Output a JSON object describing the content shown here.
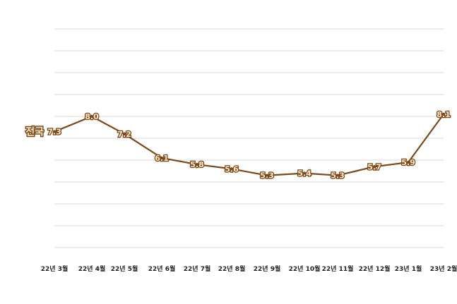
{
  "chart_data": {
    "type": "line",
    "categories": [
      "22년 3월",
      "22년 4월",
      "22년 5월",
      "22년 6월",
      "22년 7월",
      "22년 8월",
      "22년 9월",
      "22년 10월",
      "22년 11월",
      "22년 12월",
      "23년 1월",
      "23년 2월"
    ],
    "series": [
      {
        "name": "전국",
        "values": [
          7.3,
          8.0,
          7.2,
          6.1,
          5.8,
          5.6,
          5.3,
          5.4,
          5.3,
          5.7,
          5.9,
          8.1
        ]
      }
    ],
    "value_labels": [
      "7.3",
      "8.0",
      "7.2",
      "6.1",
      "5.8",
      "5.6",
      "5.3",
      "5.4",
      "5.3",
      "5.7",
      "5.9",
      "8.1"
    ],
    "ylim": [
      2,
      12
    ],
    "grid": true,
    "legend": "none",
    "colors": {
      "line": "#7a4a1c",
      "label_fill": "#fbe7c8",
      "grid": "#d9d9d9"
    }
  }
}
